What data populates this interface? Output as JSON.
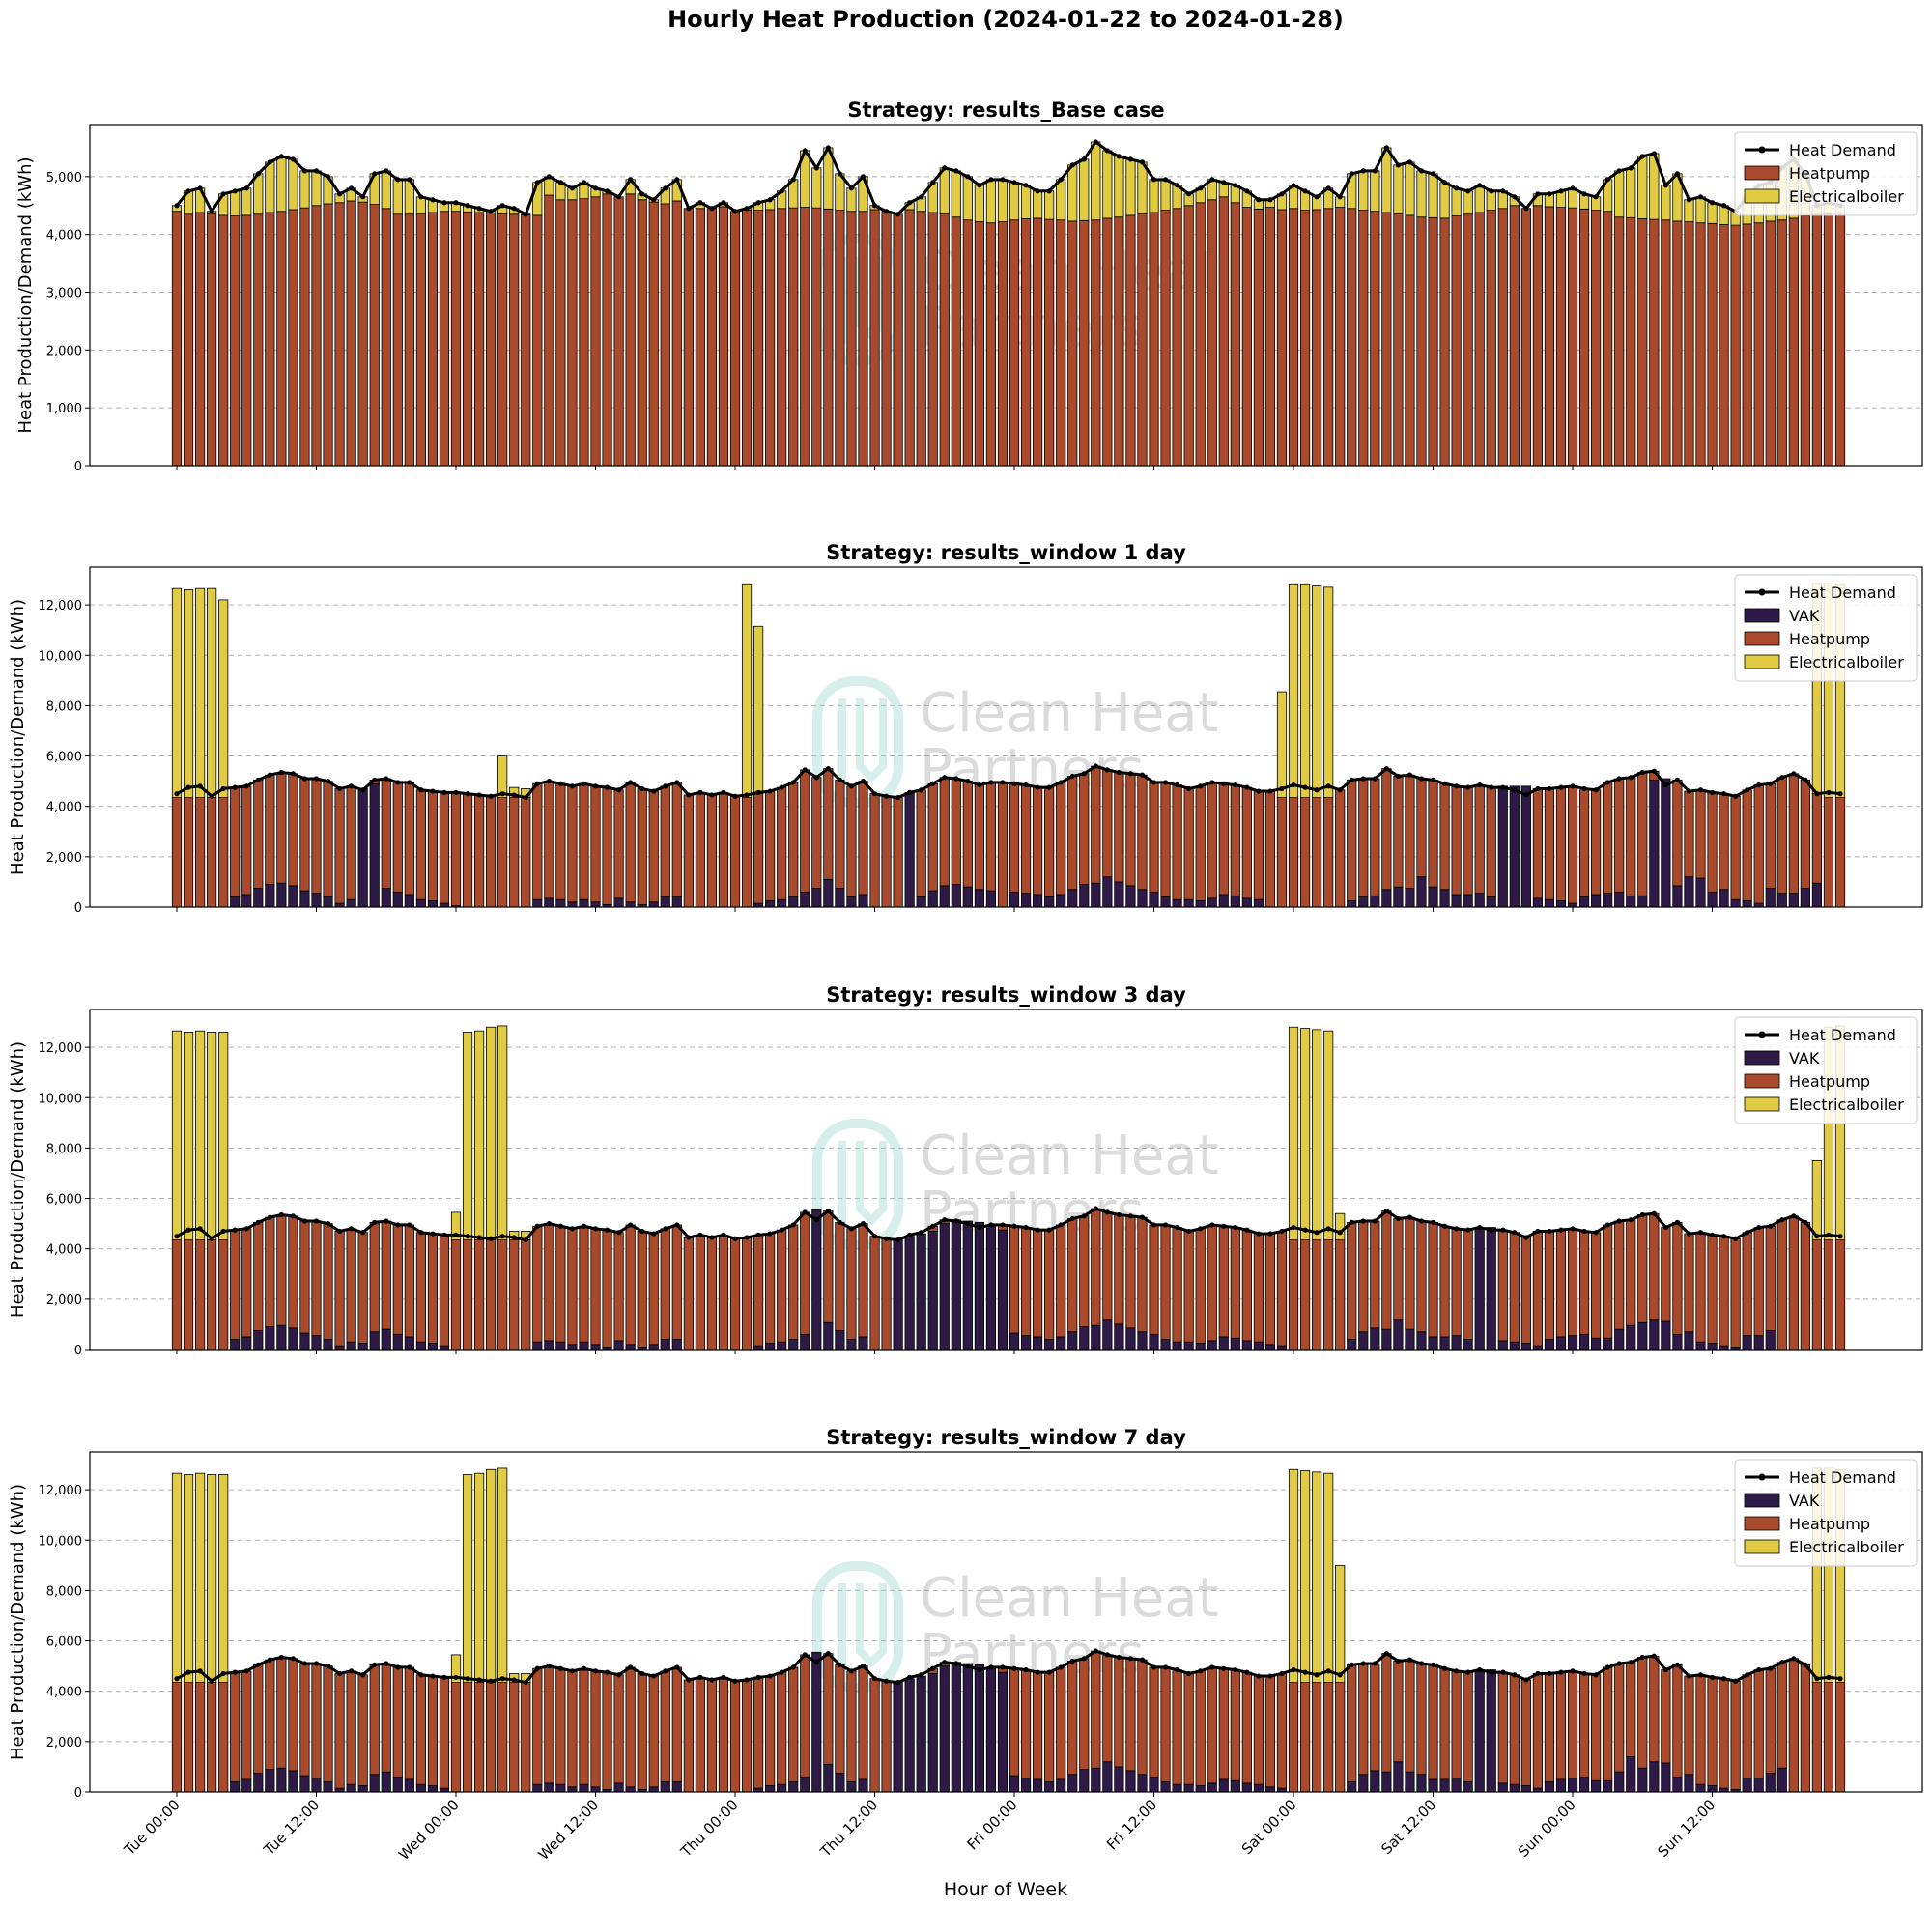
{
  "figure": {
    "title": "Hourly Heat Production (2024-01-22 to 2024-01-28)",
    "xlabel": "Hour of Week",
    "xtick_labels": [
      "Tue 00:00",
      "Tue 12:00",
      "Wed 00:00",
      "Wed 12:00",
      "Thu 00:00",
      "Thu 12:00",
      "Fri 00:00",
      "Fri 12:00",
      "Sat 00:00",
      "Sat 12:00",
      "Sun 00:00",
      "Sun 12:00"
    ],
    "xtick_hours": [
      0,
      12,
      24,
      36,
      48,
      60,
      72,
      84,
      96,
      108,
      120,
      132
    ],
    "watermark": [
      "Clean Heat",
      "Partners"
    ],
    "colors": {
      "heatpump": "#a84a2b",
      "electricalboiler": "#e0cb42",
      "vak": "#2e1a47",
      "demand": "#000000",
      "grid": "#b0b0b0",
      "watermark": "#8fd3c8"
    }
  },
  "chart_data": [
    {
      "type": "bar",
      "stacked": true,
      "title": "Strategy: results_Base case",
      "ylabel": "Heat Production/Demand (kWh)",
      "ylim": [
        0,
        5900
      ],
      "yticks": [
        0,
        1000,
        2000,
        3000,
        4000,
        5000
      ],
      "ytick_labels": [
        "0",
        "1,000",
        "2,000",
        "3,000",
        "4,000",
        "5,000"
      ],
      "grid": "y-dashed",
      "legend_position": "top-right",
      "legend": [
        "Heat Demand",
        "Heatpump",
        "Electricalboiler"
      ],
      "x_hours": "0-143",
      "demand": [
        4500,
        4750,
        4800,
        4400,
        4700,
        4750,
        4800,
        5050,
        5250,
        5350,
        5300,
        5100,
        5100,
        5000,
        4700,
        4800,
        4650,
        5050,
        5100,
        4950,
        4950,
        4650,
        4600,
        4550,
        4550,
        4500,
        4450,
        4400,
        4500,
        4450,
        4350,
        4900,
        5000,
        4900,
        4800,
        4900,
        4800,
        4750,
        4650,
        4950,
        4700,
        4600,
        4800,
        4950,
        4450,
        4550,
        4450,
        4550,
        4400,
        4450,
        4550,
        4600,
        4750,
        4950,
        5450,
        5150,
        5500,
        5050,
        4800,
        5000,
        4500,
        4400,
        4350,
        4550,
        4650,
        4900,
        5150,
        5100,
        5000,
        4850,
        4950,
        4950,
        4900,
        4850,
        4750,
        4750,
        4950,
        5200,
        5300,
        5600,
        5450,
        5350,
        5300,
        5250,
        4950,
        4950,
        4850,
        4700,
        4800,
        4950,
        4900,
        4850,
        4750,
        4600,
        4600,
        4700,
        4850,
        4750,
        4650,
        4800,
        4650,
        5050,
        5100,
        5100,
        5500,
        5200,
        5250,
        5100,
        5050,
        4900,
        4800,
        4750,
        4850,
        4750,
        4750,
        4650,
        4450,
        4700,
        4700,
        4750,
        4800,
        4700,
        4650,
        4950,
        5100,
        5150,
        5350,
        5400,
        4850,
        5050,
        4600,
        4650,
        4550,
        4500,
        4400,
        4650,
        4850,
        4900,
        5150,
        5300,
        5050,
        4500,
        4550,
        4500
      ],
      "series": [
        {
          "name": "Heatpump",
          "values": [
            4400,
            4350,
            4380,
            4360,
            4330,
            4320,
            4330,
            4350,
            4380,
            4400,
            4430,
            4460,
            4500,
            4530,
            4550,
            4580,
            4560,
            4520,
            4450,
            4350,
            4350,
            4360,
            4380,
            4400,
            4400,
            4390,
            4380,
            4370,
            4360,
            4350,
            4340,
            4330,
            4680,
            4600,
            4600,
            4620,
            4650,
            4700,
            4750,
            4700,
            4600,
            4560,
            4530,
            4580,
            4600,
            4450,
            4470,
            4480,
            4480,
            4420,
            4420,
            4430,
            4450,
            4460,
            4470,
            4460,
            4440,
            4420,
            4400,
            4400,
            4430,
            4460,
            4470,
            4430,
            4400,
            4380,
            4360,
            4300,
            4250,
            4220,
            4200,
            4220,
            4250,
            4270,
            4280,
            4260,
            4250,
            4230,
            4240,
            4250,
            4280,
            4300,
            4330,
            4360,
            4380,
            4420,
            4450,
            4500,
            4550,
            4600,
            4650,
            4550,
            4470,
            4440,
            4470,
            4430,
            4450,
            4420,
            4430,
            4450,
            4470,
            4450,
            4420,
            4400,
            4380,
            4360,
            4330,
            4300,
            4290,
            4280,
            4320,
            4350,
            4380,
            4420,
            4450,
            4500,
            4530,
            4500,
            4480,
            4470,
            4460,
            4440,
            4420,
            4400,
            4300,
            4290,
            4270,
            4260,
            4250,
            4230,
            4220,
            4200,
            4190,
            4170,
            4160,
            4180,
            4200,
            4230,
            4250,
            4280,
            4320,
            4350,
            4360,
            4380
          ]
        },
        {
          "name": "Electricalboiler",
          "values": "demand-minus-heatpump"
        }
      ]
    },
    {
      "type": "bar",
      "stacked": true,
      "title": "Strategy: results_window 1 day",
      "ylabel": "Heat Production/Demand (kWh)",
      "ylim": [
        0,
        13500
      ],
      "yticks": [
        0,
        2000,
        4000,
        6000,
        8000,
        10000,
        12000
      ],
      "ytick_labels": [
        "0",
        "2,000",
        "4,000",
        "6,000",
        "8,000",
        "10,000",
        "12,000"
      ],
      "grid": "y-dashed",
      "legend_position": "top-right",
      "legend": [
        "Heat Demand",
        "VAK",
        "Heatpump",
        "Electricalboiler"
      ],
      "vak": {
        "0": 0,
        "1": 0,
        "2": 0,
        "3": 0,
        "4": 0,
        "5": 400,
        "6": 500,
        "7": 750,
        "8": 900,
        "9": 950,
        "10": 850,
        "11": 650,
        "12": 550,
        "13": 400,
        "14": 150,
        "15": 300,
        "16": 4700,
        "17": 4900,
        "18": 750,
        "19": 600,
        "20": 500,
        "21": 300,
        "22": 250,
        "23": 150,
        "24": 50,
        "31": 300,
        "32": 350,
        "33": 300,
        "34": 200,
        "35": 300,
        "36": 200,
        "37": 100,
        "38": 350,
        "39": 200,
        "40": 100,
        "41": 200,
        "42": 400,
        "43": 400,
        "44": 0,
        "50": 150,
        "51": 250,
        "52": 300,
        "53": 400,
        "54": 600,
        "55": 750,
        "56": 1100,
        "57": 750,
        "58": 400,
        "59": 500,
        "60": 0,
        "61": 0,
        "62": 0,
        "63": 4550,
        "64": 400,
        "65": 650,
        "66": 850,
        "67": 900,
        "68": 800,
        "69": 700,
        "70": 650,
        "71": 0,
        "72": 600,
        "73": 550,
        "74": 500,
        "75": 400,
        "76": 500,
        "77": 700,
        "78": 900,
        "79": 950,
        "80": 1200,
        "81": 1000,
        "82": 850,
        "83": 700,
        "84": 600,
        "85": 400,
        "86": 300,
        "87": 300,
        "88": 250,
        "89": 350,
        "90": 500,
        "91": 450,
        "92": 350,
        "93": 300,
        "94": 0,
        "95": 0,
        "96": 0,
        "97": 0,
        "98": 0,
        "99": 0,
        "100": 0,
        "101": 250,
        "102": 400,
        "103": 450,
        "104": 700,
        "105": 800,
        "106": 750,
        "107": 1200,
        "108": 800,
        "109": 700,
        "110": 500,
        "111": 500,
        "112": 550,
        "113": 400,
        "114": 4800,
        "115": 4800,
        "116": 4800,
        "117": 350,
        "118": 300,
        "119": 250,
        "120": 150,
        "121": 400,
        "122": 500,
        "123": 550,
        "124": 600,
        "125": 450,
        "126": 450,
        "127": 5050,
        "128": 5100,
        "129": 850,
        "130": 1200,
        "131": 1150,
        "132": 600,
        "133": 700,
        "134": 300,
        "135": 250,
        "136": 150,
        "137": 750,
        "138": 550,
        "139": 550,
        "140": 750,
        "141": 950,
        "142": 0,
        "143": 0
      },
      "electricalboiler_total": {
        "0": 12650,
        "1": 12600,
        "2": 12650,
        "3": 12650,
        "4": 12200,
        "28": 6000,
        "29": 4750,
        "30": 4700,
        "49": 12800,
        "50": 11150,
        "95": 8550,
        "96": 12800,
        "97": 12800,
        "98": 12750,
        "99": 12700,
        "141": 12850,
        "142": 12850,
        "143": 12800
      },
      "series": [
        {
          "name": "VAK",
          "values": "see vak"
        },
        {
          "name": "Heatpump",
          "values": "demand-minus-vak"
        },
        {
          "name": "Electricalboiler",
          "values": "see electricalboiler_total"
        }
      ]
    },
    {
      "type": "bar",
      "stacked": true,
      "title": "Strategy: results_window 3 day",
      "ylabel": "Heat Production/Demand (kWh)",
      "ylim": [
        0,
        13500
      ],
      "yticks": [
        0,
        2000,
        4000,
        6000,
        8000,
        10000,
        12000
      ],
      "ytick_labels": [
        "0",
        "2,000",
        "4,000",
        "6,000",
        "8,000",
        "10,000",
        "12,000"
      ],
      "grid": "y-dashed",
      "legend_position": "top-right",
      "legend": [
        "Heat Demand",
        "VAK",
        "Heatpump",
        "Electricalboiler"
      ],
      "vak": {
        "0": 0,
        "1": 0,
        "2": 0,
        "3": 0,
        "4": 0,
        "5": 400,
        "6": 500,
        "7": 750,
        "8": 900,
        "9": 950,
        "10": 850,
        "11": 650,
        "12": 550,
        "13": 400,
        "14": 150,
        "15": 300,
        "16": 250,
        "17": 700,
        "18": 800,
        "19": 600,
        "20": 500,
        "21": 300,
        "22": 250,
        "23": 150,
        "24": 0,
        "31": 300,
        "32": 350,
        "33": 300,
        "34": 200,
        "35": 300,
        "36": 200,
        "37": 100,
        "38": 350,
        "39": 200,
        "40": 100,
        "41": 200,
        "42": 400,
        "43": 400,
        "50": 150,
        "51": 250,
        "52": 300,
        "53": 400,
        "54": 600,
        "55": 5550,
        "56": 1100,
        "57": 750,
        "58": 400,
        "59": 500,
        "62": 4400,
        "63": 4500,
        "64": 4600,
        "65": 4700,
        "66": 5000,
        "67": 5150,
        "68": 5100,
        "69": 5050,
        "70": 4950,
        "71": 4750,
        "72": 650,
        "73": 550,
        "74": 500,
        "75": 400,
        "76": 500,
        "77": 700,
        "78": 900,
        "79": 950,
        "80": 1200,
        "81": 1000,
        "82": 850,
        "83": 700,
        "84": 600,
        "85": 400,
        "86": 300,
        "87": 300,
        "88": 250,
        "89": 350,
        "90": 500,
        "91": 450,
        "92": 350,
        "93": 300,
        "94": 200,
        "95": 150,
        "101": 400,
        "102": 700,
        "103": 850,
        "104": 800,
        "105": 1200,
        "106": 800,
        "107": 700,
        "108": 500,
        "109": 500,
        "110": 550,
        "111": 400,
        "112": 4800,
        "113": 4850,
        "114": 350,
        "115": 300,
        "116": 250,
        "117": 150,
        "118": 400,
        "119": 500,
        "120": 550,
        "121": 600,
        "122": 450,
        "123": 450,
        "124": 800,
        "125": 950,
        "126": 1100,
        "127": 1200,
        "128": 1150,
        "129": 600,
        "130": 700,
        "131": 300,
        "132": 250,
        "133": 150,
        "134": 100,
        "135": 550,
        "136": 550,
        "137": 750,
        "138": 0,
        "139": 0,
        "140": 0,
        "141": 0,
        "142": 0,
        "143": 0
      },
      "electricalboiler_total": {
        "0": 12650,
        "1": 12600,
        "2": 12650,
        "3": 12600,
        "4": 12600,
        "24": 5450,
        "25": 12600,
        "26": 12650,
        "27": 12800,
        "28": 12850,
        "29": 4700,
        "30": 4700,
        "72": 4300,
        "96": 12800,
        "97": 12750,
        "98": 12700,
        "99": 12650,
        "100": 5400,
        "120": 4300,
        "141": 7500,
        "142": 12800,
        "143": 12850
      },
      "series": [
        {
          "name": "VAK",
          "values": "see vak"
        },
        {
          "name": "Heatpump",
          "values": "demand-minus-vak"
        },
        {
          "name": "Electricalboiler",
          "values": "see electricalboiler_total"
        }
      ]
    },
    {
      "type": "bar",
      "stacked": true,
      "title": "Strategy: results_window 7 day",
      "ylabel": "Heat Production/Demand (kWh)",
      "ylim": [
        0,
        13500
      ],
      "yticks": [
        0,
        2000,
        4000,
        6000,
        8000,
        10000,
        12000
      ],
      "ytick_labels": [
        "0",
        "2,000",
        "4,000",
        "6,000",
        "8,000",
        "10,000",
        "12,000"
      ],
      "grid": "y-dashed",
      "legend_position": "top-right",
      "legend": [
        "Heat Demand",
        "VAK",
        "Heatpump",
        "Electricalboiler"
      ],
      "vak": {
        "0": 0,
        "1": 0,
        "2": 0,
        "3": 0,
        "4": 0,
        "5": 400,
        "6": 500,
        "7": 750,
        "8": 900,
        "9": 950,
        "10": 850,
        "11": 650,
        "12": 550,
        "13": 400,
        "14": 150,
        "15": 300,
        "16": 250,
        "17": 700,
        "18": 800,
        "19": 600,
        "20": 500,
        "21": 300,
        "22": 250,
        "23": 150,
        "24": 0,
        "31": 300,
        "32": 350,
        "33": 300,
        "34": 200,
        "35": 300,
        "36": 200,
        "37": 100,
        "38": 350,
        "39": 200,
        "40": 100,
        "41": 200,
        "42": 400,
        "43": 400,
        "50": 150,
        "51": 250,
        "52": 300,
        "53": 400,
        "54": 600,
        "55": 5550,
        "56": 1100,
        "57": 750,
        "58": 400,
        "59": 500,
        "62": 4400,
        "63": 4500,
        "64": 4600,
        "65": 4700,
        "66": 5000,
        "67": 5150,
        "68": 5100,
        "69": 5050,
        "70": 4950,
        "71": 4750,
        "72": 650,
        "73": 550,
        "74": 500,
        "75": 400,
        "76": 500,
        "77": 700,
        "78": 900,
        "79": 950,
        "80": 1200,
        "81": 1000,
        "82": 850,
        "83": 700,
        "84": 600,
        "85": 400,
        "86": 300,
        "87": 300,
        "88": 250,
        "89": 350,
        "90": 500,
        "91": 450,
        "92": 350,
        "93": 300,
        "94": 200,
        "95": 150,
        "101": 400,
        "102": 700,
        "103": 850,
        "104": 800,
        "105": 1200,
        "106": 800,
        "107": 700,
        "108": 500,
        "109": 500,
        "110": 550,
        "111": 400,
        "112": 4800,
        "113": 4850,
        "114": 350,
        "115": 300,
        "116": 250,
        "117": 150,
        "118": 400,
        "119": 500,
        "120": 550,
        "121": 600,
        "122": 450,
        "123": 450,
        "124": 800,
        "125": 1400,
        "126": 950,
        "127": 1200,
        "128": 1150,
        "129": 600,
        "130": 700,
        "131": 300,
        "132": 250,
        "133": 150,
        "134": 100,
        "135": 550,
        "136": 550,
        "137": 750,
        "138": 950,
        "139": 0,
        "140": 0,
        "141": 0,
        "142": 0,
        "143": 0
      },
      "electricalboiler_total": {
        "0": 12650,
        "1": 12600,
        "2": 12650,
        "3": 12600,
        "4": 12600,
        "24": 5450,
        "25": 12600,
        "26": 12650,
        "27": 12800,
        "28": 12850,
        "29": 4700,
        "30": 4700,
        "72": 4300,
        "96": 12800,
        "97": 12750,
        "98": 12700,
        "99": 12650,
        "100": 9000,
        "120": 4300,
        "141": 12850,
        "142": 12850,
        "143": 12800
      },
      "series": [
        {
          "name": "VAK",
          "values": "see vak"
        },
        {
          "name": "Heatpump",
          "values": "demand-minus-vak"
        },
        {
          "name": "Electricalboiler",
          "values": "see electricalboiler_total"
        }
      ]
    }
  ]
}
